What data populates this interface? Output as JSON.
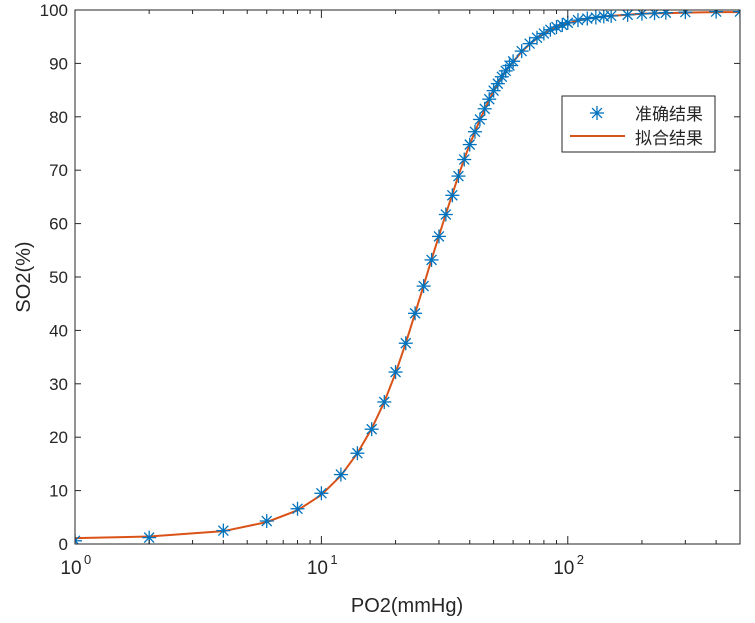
{
  "chart_data": {
    "type": "line",
    "xlabel": "PO2(mmHg)",
    "ylabel": "SO2(%)",
    "xscale": "log",
    "xlim": [
      1,
      500
    ],
    "ylim": [
      0,
      100
    ],
    "x_tick_labels": [
      "10",
      "10",
      "10"
    ],
    "x_tick_exponents": [
      "0",
      "1",
      "2"
    ],
    "x_ticks": [
      1,
      10,
      100
    ],
    "y_ticks": [
      0,
      10,
      20,
      30,
      40,
      50,
      60,
      70,
      80,
      90,
      100
    ],
    "grid": false,
    "legend_position": "right",
    "series": [
      {
        "name": "准确结果",
        "style": "markers",
        "marker": "asterisk",
        "color": "#0072BD",
        "x": [
          1,
          2,
          4,
          6,
          8,
          10,
          12,
          14,
          16,
          18,
          20,
          22,
          24,
          26,
          28,
          30,
          32,
          34,
          36,
          38,
          40,
          42,
          44,
          46,
          48,
          50,
          52,
          54,
          56,
          58,
          60,
          65,
          70,
          75,
          80,
          85,
          90,
          95,
          100,
          110,
          120,
          130,
          140,
          150,
          175,
          200,
          225,
          250,
          300,
          400,
          500
        ],
        "y": [
          0.6,
          1.2,
          2.5,
          4.3,
          6.6,
          9.5,
          13.0,
          17.0,
          21.5,
          26.6,
          32.2,
          37.6,
          43.2,
          48.3,
          53.2,
          57.6,
          61.7,
          65.3,
          68.9,
          72.0,
          74.8,
          77.2,
          79.5,
          81.5,
          83.3,
          84.9,
          86.2,
          87.5,
          88.6,
          89.6,
          90.4,
          92.3,
          93.7,
          94.8,
          95.6,
          96.3,
          96.8,
          97.2,
          97.6,
          98.1,
          98.4,
          98.6,
          98.8,
          98.9,
          99.1,
          99.3,
          99.4,
          99.5,
          99.6,
          99.7,
          99.7
        ]
      },
      {
        "name": "拟合结果",
        "style": "line",
        "color": "#D95319",
        "x": [
          1,
          2,
          4,
          6,
          8,
          10,
          12,
          14,
          16,
          18,
          20,
          22,
          24,
          26,
          28,
          30,
          32,
          34,
          36,
          38,
          40,
          42,
          44,
          46,
          48,
          50,
          52,
          54,
          56,
          58,
          60,
          65,
          70,
          75,
          80,
          85,
          90,
          95,
          100,
          110,
          120,
          130,
          140,
          150,
          175,
          200,
          225,
          250,
          300,
          400,
          500
        ],
        "y": [
          1.1,
          1.4,
          2.4,
          4.1,
          6.3,
          9.2,
          12.8,
          17.0,
          21.6,
          26.6,
          32.0,
          37.6,
          43.2,
          48.4,
          53.3,
          57.7,
          61.8,
          65.5,
          69.0,
          72.1,
          74.8,
          77.2,
          79.4,
          81.4,
          83.2,
          84.8,
          86.2,
          87.4,
          88.5,
          89.5,
          90.3,
          92.2,
          93.6,
          94.7,
          95.5,
          96.2,
          96.7,
          97.1,
          97.5,
          98.0,
          98.4,
          98.6,
          98.8,
          98.9,
          99.1,
          99.3,
          99.4,
          99.4,
          99.5,
          99.6,
          99.6
        ]
      }
    ]
  }
}
